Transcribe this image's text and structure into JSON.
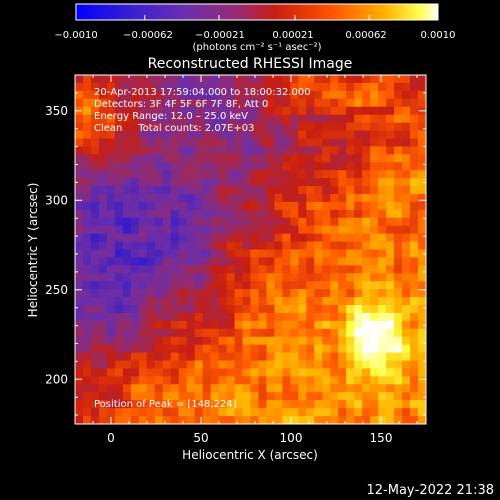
{
  "chart_data": {
    "type": "heatmap",
    "title": "Reconstructed RHESSI Image",
    "xlabel": "Heliocentric X (arcsec)",
    "ylabel": "Heliocentric Y (arcsec)",
    "xlim": [
      -20,
      175
    ],
    "ylim": [
      175,
      370
    ],
    "xticks": [
      0,
      50,
      100,
      150
    ],
    "yticks": [
      200,
      250,
      300,
      350
    ],
    "colorbar": {
      "min": -0.001,
      "max": 0.001,
      "tick_labels": [
        "−0.0010",
        "−0.00062",
        "−0.00021",
        "0.00021",
        "0.00062",
        "0.0010"
      ],
      "tick_values": [
        -0.001,
        -0.00062,
        -0.00021,
        0.00021,
        0.00062,
        0.001
      ],
      "unit_label": "(photons cm⁻² s⁻¹ asec⁻²)",
      "colors": [
        "#0000ff",
        "#4020c0",
        "#6e2ea8",
        "#9a2a60",
        "#c81e10",
        "#ff5a00",
        "#ffb000",
        "#ffff40",
        "#ffffff"
      ]
    },
    "annotations": [
      "20‑Apr‑2013 17:59:04.000 to 18:00:32.000",
      "Detectors: 3F 4F 5F 6F 7F 8F, Att 0",
      "Energy Range: 12.0 – 25.0 keV",
      "Clean     Total counts: 2.07E+03"
    ],
    "peak_label": "Position of Peak = [148,224]",
    "peak": [
      148,
      224
    ],
    "grid": false
  },
  "footer": {
    "timestamp": "12‑May‑2022 21:38"
  }
}
